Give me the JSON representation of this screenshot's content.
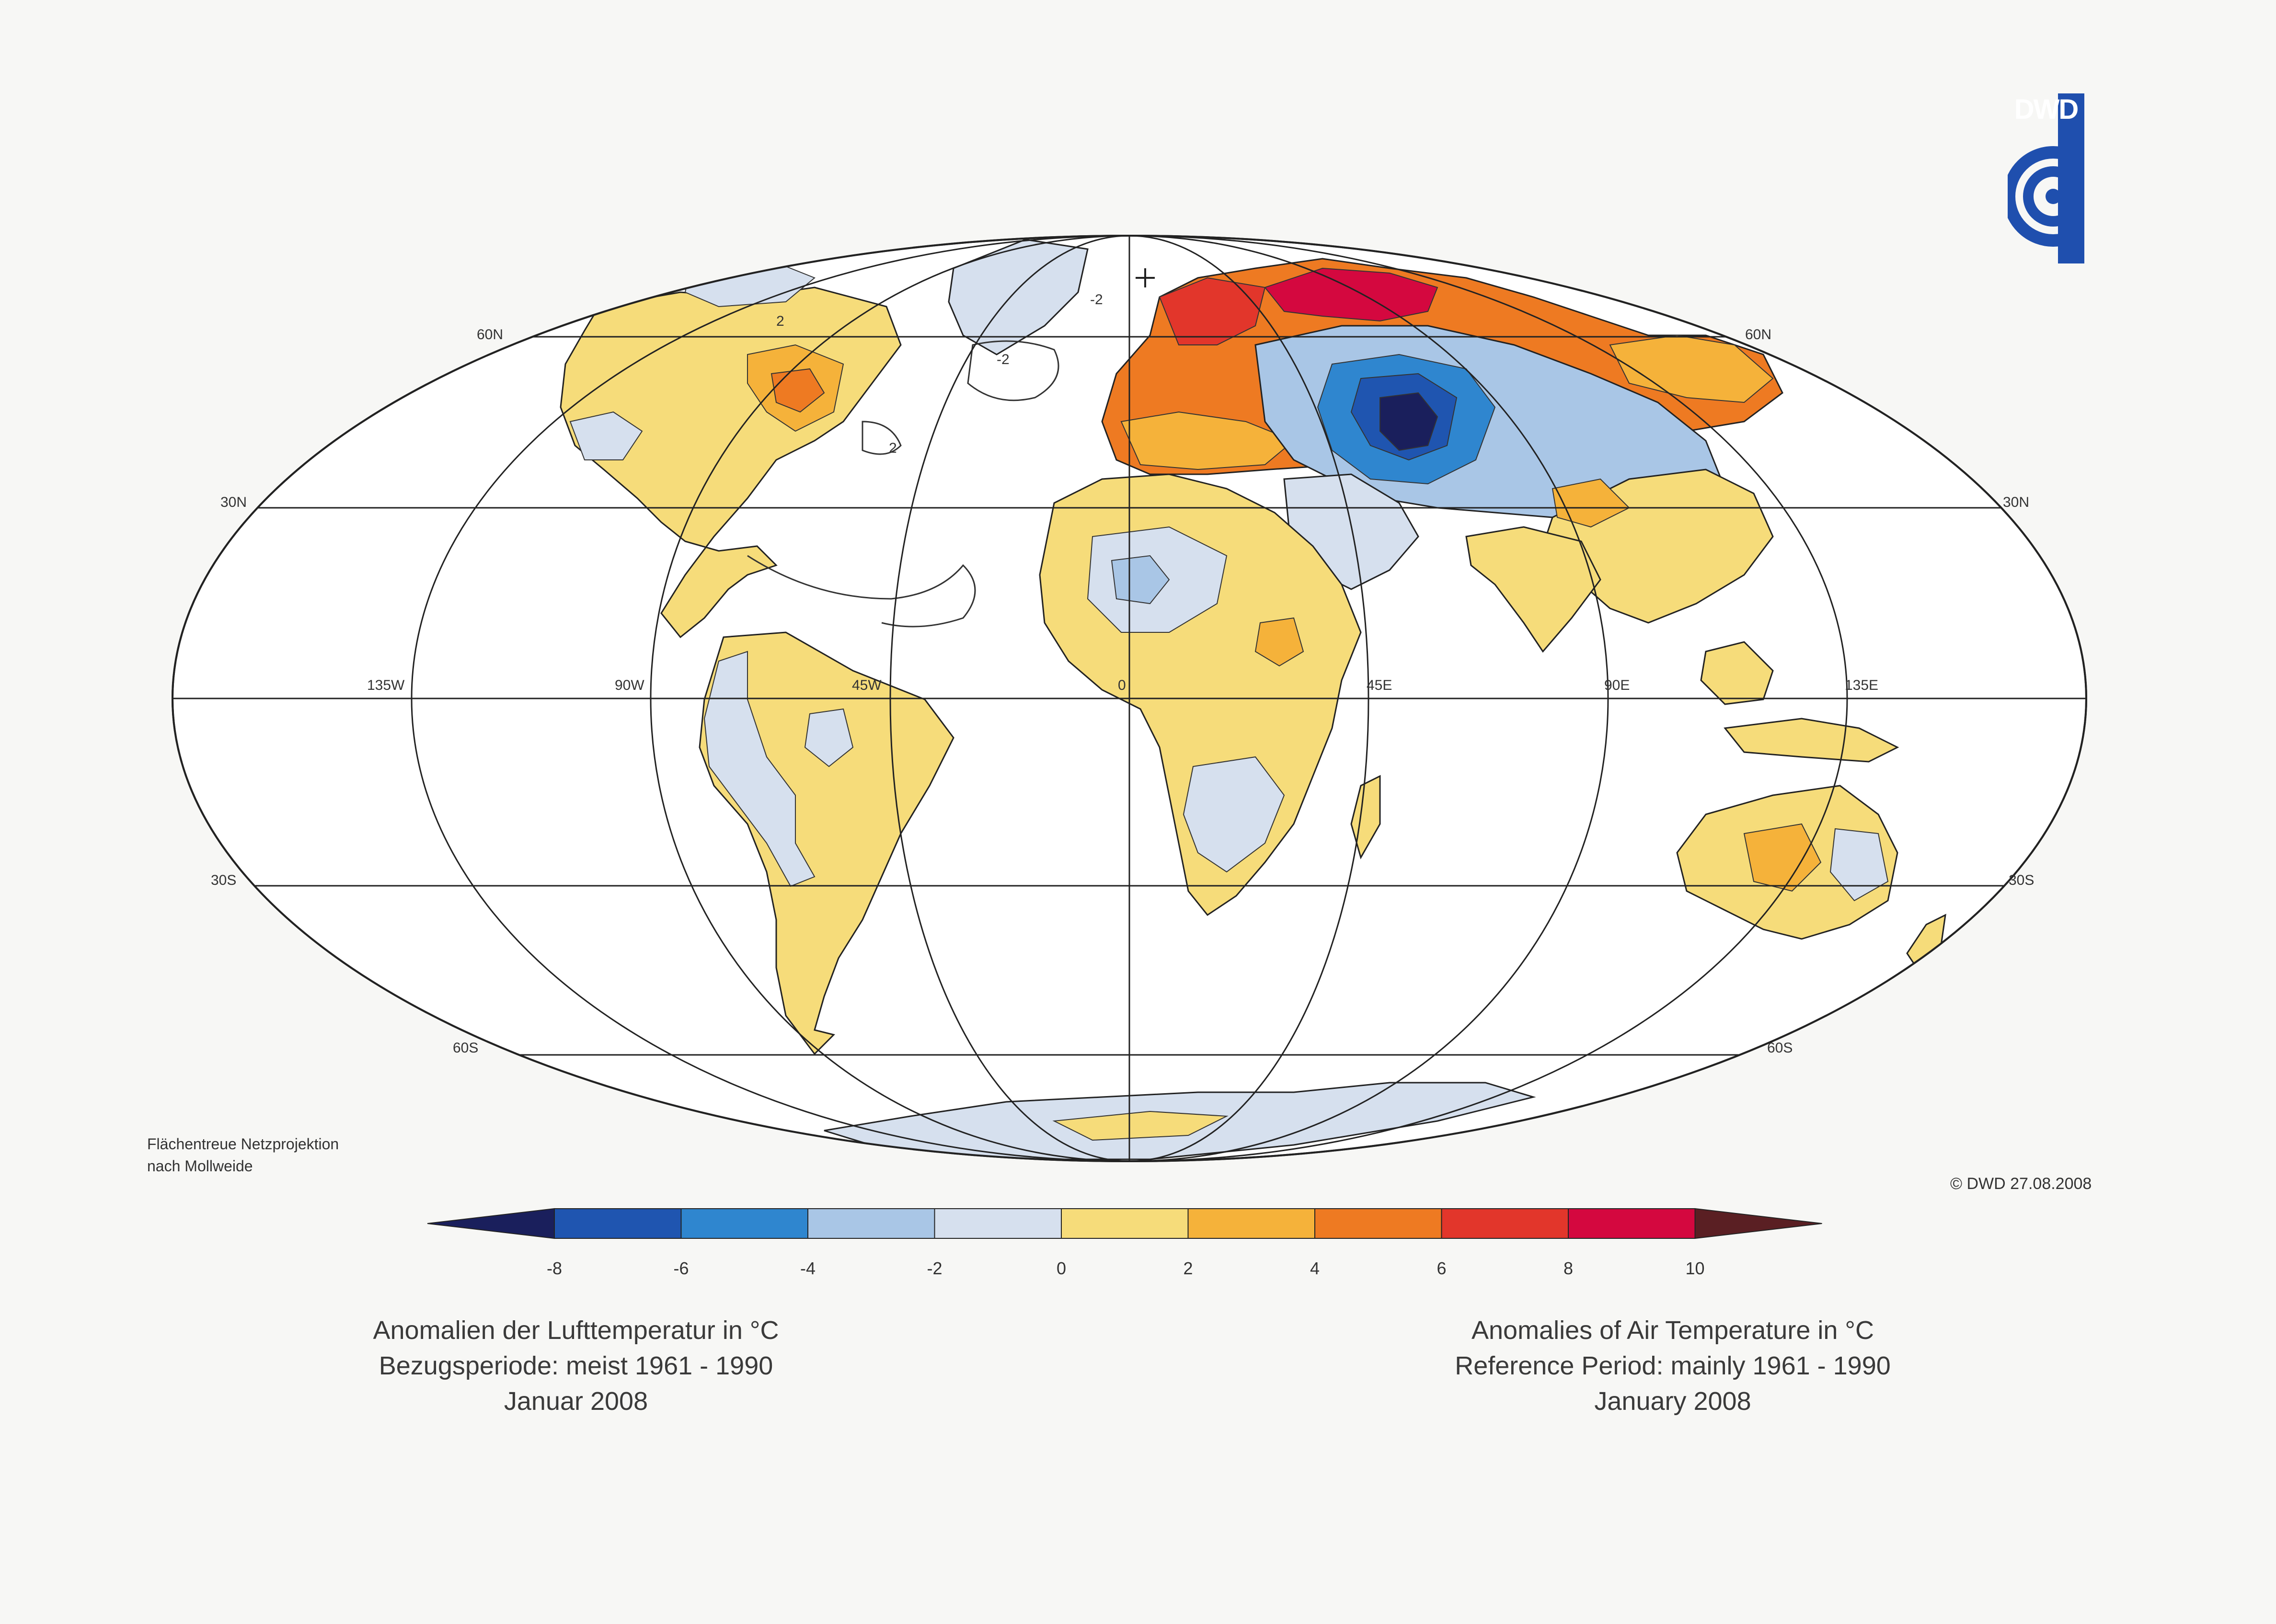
{
  "logo": {
    "text": "DWD"
  },
  "projection_note": {
    "line1": "Flächentreue Netzprojektion",
    "line2": "nach Mollweide"
  },
  "copyright": "© DWD 27.08.2008",
  "title_de": {
    "line1": "Anomalien der Lufttemperatur in °C",
    "line2": "Bezugsperiode: meist 1961 - 1990",
    "line3": "Januar 2008"
  },
  "title_en": {
    "line1": "Anomalies of Air Temperature in °C",
    "line2": "Reference Period: mainly 1961 - 1990",
    "line3": "January 2008"
  },
  "grid_labels": {
    "lat_60n": "60N",
    "lat_30n": "30N",
    "lat_30s": "30S",
    "lat_60s": "60S",
    "lon_135w": "135W",
    "lon_90w": "90W",
    "lon_45w": "45W",
    "lon_0": "0",
    "lon_45e": "45E",
    "lon_90e": "90E",
    "lon_135e": "135E"
  },
  "contour_labels": [
    "-2",
    "2",
    "-2",
    "2"
  ],
  "color_scale": {
    "unit": "°C",
    "ticks": [
      "-8",
      "-6",
      "-4",
      "-2",
      "0",
      "2",
      "4",
      "6",
      "8",
      "10"
    ],
    "bins": [
      {
        "from": "<-8",
        "color": "#1a1f5c"
      },
      {
        "from": -8,
        "to": -6,
        "color": "#1f55b0"
      },
      {
        "from": -6,
        "to": -4,
        "color": "#2f86cf"
      },
      {
        "from": -4,
        "to": -2,
        "color": "#a9c6e6"
      },
      {
        "from": -2,
        "to": 0,
        "color": "#d6e0ee"
      },
      {
        "from": 0,
        "to": 2,
        "color": "#f6dc7a"
      },
      {
        "from": 2,
        "to": 4,
        "color": "#f5b23a"
      },
      {
        "from": 4,
        "to": 6,
        "color": "#ee7a22"
      },
      {
        "from": 6,
        "to": 8,
        "color": "#e2362b"
      },
      {
        "from": 8,
        "to": 10,
        "color": "#d4083f"
      },
      {
        "from": ">10",
        "color": "#5a1f23"
      }
    ]
  }
}
